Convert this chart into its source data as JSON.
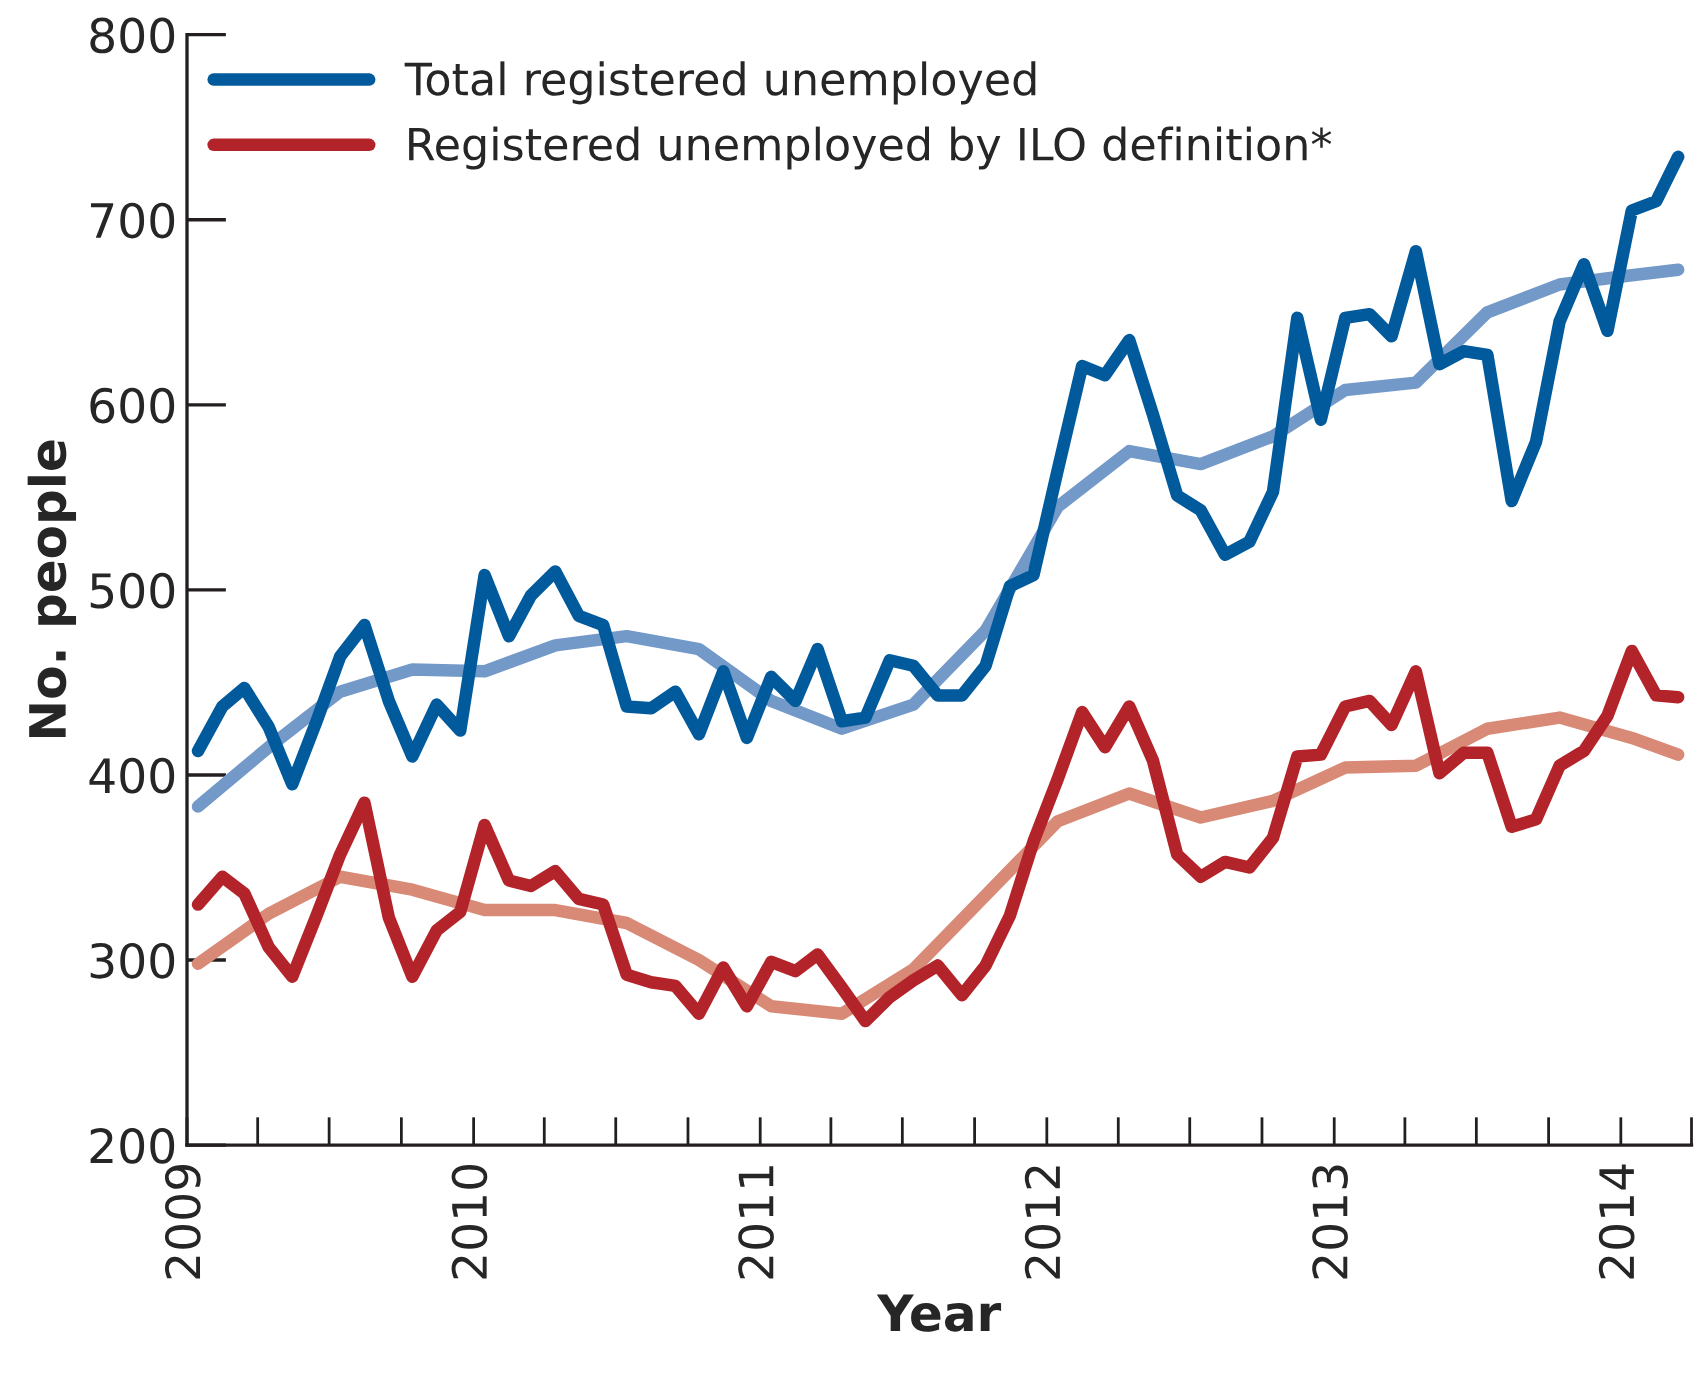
{
  "chart_data": {
    "type": "line",
    "xlabel": "Year",
    "ylabel": "No. people",
    "x": [
      "2009-01-15",
      "2009-02-15",
      "2009-03-15",
      "2009-04-15",
      "2009-05-15",
      "2009-06-15",
      "2009-07-15",
      "2009-08-15",
      "2009-09-15",
      "2009-10-15",
      "2009-11-15",
      "2009-12-15",
      "2010-01-15",
      "2010-02-15",
      "2010-03-15",
      "2010-04-15",
      "2010-05-15",
      "2010-06-15",
      "2010-07-15",
      "2010-08-15",
      "2010-09-15",
      "2010-10-15",
      "2010-11-15",
      "2010-12-15",
      "2011-01-15",
      "2011-02-15",
      "2011-03-15",
      "2011-04-15",
      "2011-05-15",
      "2011-06-15",
      "2011-07-15",
      "2011-08-15",
      "2011-09-15",
      "2011-10-15",
      "2011-11-15",
      "2011-12-15",
      "2012-01-15",
      "2012-02-15",
      "2012-03-15",
      "2012-04-15",
      "2012-05-15",
      "2012-06-15",
      "2012-07-15",
      "2012-08-15",
      "2012-09-15",
      "2012-10-15",
      "2012-11-15",
      "2012-12-15",
      "2013-01-15",
      "2013-02-15",
      "2013-03-15",
      "2013-04-15",
      "2013-05-15",
      "2013-06-15",
      "2013-07-15",
      "2013-08-15",
      "2013-09-15",
      "2013-10-15",
      "2013-11-15",
      "2013-12-15",
      "2014-01-15",
      "2014-02-15",
      "2014-03-15"
    ],
    "series": [
      {
        "name": "Total registered unemployed",
        "color": "#005a9c",
        "values": [
          413,
          437,
          447,
          426,
          395,
          429,
          464,
          481,
          440,
          410,
          438,
          424,
          508,
          475,
          497,
          510,
          486,
          481,
          437,
          436,
          445,
          422,
          456,
          420,
          453,
          440,
          468,
          429,
          431,
          462,
          459,
          443,
          443,
          459,
          502,
          508,
          565,
          621,
          616,
          635,
          595,
          551,
          543,
          519,
          526,
          553,
          647,
          592,
          647,
          649,
          637,
          683,
          622,
          629,
          627,
          548,
          580,
          645,
          676,
          640,
          705,
          710,
          734
        ]
      },
      {
        "name": "Registered unemployed by ILO definition*",
        "color": "#b3242a",
        "values": [
          330,
          345,
          336,
          307,
          291,
          324,
          357,
          385,
          323,
          291,
          316,
          326,
          373,
          343,
          340,
          348,
          333,
          330,
          292,
          288,
          286,
          271,
          296,
          275,
          299,
          294,
          303,
          285,
          267,
          280,
          289,
          297,
          281,
          297,
          324,
          364,
          398,
          434,
          415,
          437,
          408,
          357,
          345,
          353,
          350,
          366,
          410,
          411,
          437,
          440,
          427,
          456,
          401,
          412,
          412,
          372,
          376,
          405,
          413,
          432,
          467,
          443,
          442
        ]
      },
      {
        "color": "#7399c8",
        "x": [
          "2009-01-15",
          "2009-04-15",
          "2009-07-15",
          "2009-10-15",
          "2010-01-15",
          "2010-04-15",
          "2010-07-15",
          "2010-10-15",
          "2011-01-15",
          "2011-04-15",
          "2011-07-15",
          "2011-10-15",
          "2012-01-15",
          "2012-04-15",
          "2012-07-15",
          "2012-10-15",
          "2013-01-15",
          "2013-04-15",
          "2013-07-15",
          "2013-10-15",
          "2014-01-15",
          "2014-03-15"
        ],
        "values": [
          383,
          415,
          445,
          457,
          456,
          470,
          475,
          468,
          440,
          425,
          438,
          478,
          545,
          575,
          568,
          583,
          608,
          612,
          650,
          665,
          670,
          673
        ]
      },
      {
        "color": "#d88a76",
        "x": [
          "2009-01-15",
          "2009-04-15",
          "2009-07-15",
          "2009-10-15",
          "2010-01-15",
          "2010-04-15",
          "2010-07-15",
          "2010-10-15",
          "2011-01-15",
          "2011-04-15",
          "2011-07-15",
          "2011-10-15",
          "2012-01-15",
          "2012-04-15",
          "2012-07-15",
          "2012-10-15",
          "2013-01-15",
          "2013-04-15",
          "2013-07-15",
          "2013-10-15",
          "2014-01-15",
          "2014-03-15"
        ],
        "values": [
          298,
          325,
          345,
          338,
          327,
          327,
          320,
          300,
          275,
          271,
          295,
          335,
          375,
          390,
          377,
          386,
          404,
          405,
          425,
          431,
          420,
          411
        ]
      }
    ],
    "xlim": [
      "2009-01-01",
      "2014-04-01"
    ],
    "xticks": [
      {
        "value": "2009-01-01",
        "label": "2009"
      },
      {
        "value": "2009-04-01",
        "label": null
      },
      {
        "value": "2009-07-01",
        "label": null
      },
      {
        "value": "2009-10-01",
        "label": null
      },
      {
        "value": "2010-01-01",
        "label": "2010"
      },
      {
        "value": "2010-04-01",
        "label": null
      },
      {
        "value": "2010-07-01",
        "label": null
      },
      {
        "value": "2010-10-01",
        "label": null
      },
      {
        "value": "2011-01-01",
        "label": "2011"
      },
      {
        "value": "2011-04-01",
        "label": null
      },
      {
        "value": "2011-07-01",
        "label": null
      },
      {
        "value": "2011-10-01",
        "label": null
      },
      {
        "value": "2012-01-01",
        "label": "2012"
      },
      {
        "value": "2012-04-01",
        "label": null
      },
      {
        "value": "2012-07-01",
        "label": null
      },
      {
        "value": "2012-10-01",
        "label": null
      },
      {
        "value": "2013-01-01",
        "label": "2013"
      },
      {
        "value": "2013-04-01",
        "label": null
      },
      {
        "value": "2013-07-01",
        "label": null
      },
      {
        "value": "2013-10-01",
        "label": null
      },
      {
        "value": "2014-01-01",
        "label": "2014"
      },
      {
        "value": "2014-04-01",
        "label": null
      }
    ],
    "ylim": [
      200,
      800
    ],
    "yticks": [
      200,
      300,
      400,
      500,
      600,
      700,
      800
    ],
    "grid": false,
    "legend": "top left",
    "marker": "none",
    "line_style": "solid"
  }
}
